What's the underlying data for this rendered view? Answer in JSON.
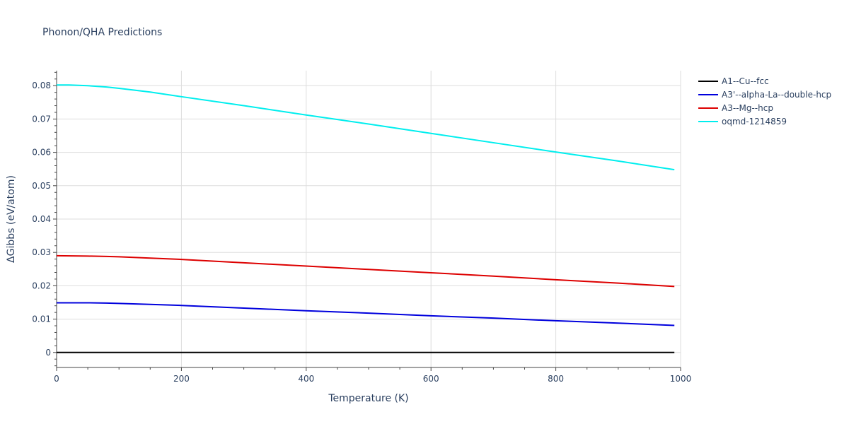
{
  "chart_data": {
    "type": "line",
    "title": "Phonon/QHA Predictions",
    "xlabel": "Temperature (K)",
    "ylabel": "ΔGibbs (eV/atom)",
    "xlim": [
      0,
      1000
    ],
    "ylim": [
      -0.0045,
      0.0845
    ],
    "x_ticks": [
      0,
      200,
      400,
      600,
      800,
      1000
    ],
    "x_tick_labels": [
      "0",
      "200",
      "400",
      "600",
      "800",
      "1000"
    ],
    "y_ticks": [
      0,
      0.01,
      0.02,
      0.03,
      0.04,
      0.05,
      0.06,
      0.07,
      0.08
    ],
    "y_tick_labels": [
      "0",
      "0.01",
      "0.02",
      "0.03",
      "0.04",
      "0.05",
      "0.06",
      "0.07",
      "0.08"
    ],
    "grid": true,
    "legend_position": "top-right",
    "series": [
      {
        "name": "A1--Cu--fcc",
        "color": "#000000",
        "x": [
          0,
          100,
          200,
          300,
          400,
          500,
          600,
          700,
          800,
          900,
          990
        ],
        "y": [
          0,
          0,
          0,
          0,
          0,
          0,
          0,
          0,
          0,
          0,
          0
        ]
      },
      {
        "name": "A3'--alpha-La--double-hcp",
        "color": "#0000dd",
        "x": [
          0,
          50,
          80,
          100,
          150,
          200,
          300,
          400,
          500,
          600,
          700,
          800,
          900,
          990
        ],
        "y": [
          0.0149,
          0.0149,
          0.0148,
          0.0147,
          0.0144,
          0.0141,
          0.0133,
          0.0125,
          0.0118,
          0.011,
          0.0103,
          0.0095,
          0.0088,
          0.0081
        ]
      },
      {
        "name": "A3--Mg--hcp",
        "color": "#dd0000",
        "x": [
          0,
          50,
          80,
          100,
          150,
          200,
          300,
          400,
          500,
          600,
          700,
          800,
          900,
          990
        ],
        "y": [
          0.029,
          0.0289,
          0.0288,
          0.0287,
          0.0283,
          0.0279,
          0.0269,
          0.0259,
          0.0249,
          0.0239,
          0.0229,
          0.0218,
          0.0208,
          0.0198
        ]
      },
      {
        "name": "oqmd-1214859",
        "color": "#00eeee",
        "x": [
          0,
          20,
          50,
          80,
          100,
          150,
          200,
          300,
          400,
          500,
          600,
          700,
          800,
          900,
          990
        ],
        "y": [
          0.0802,
          0.0802,
          0.08,
          0.0796,
          0.0792,
          0.0781,
          0.0767,
          0.074,
          0.0712,
          0.0685,
          0.0657,
          0.0629,
          0.0601,
          0.0574,
          0.0548
        ]
      }
    ]
  }
}
